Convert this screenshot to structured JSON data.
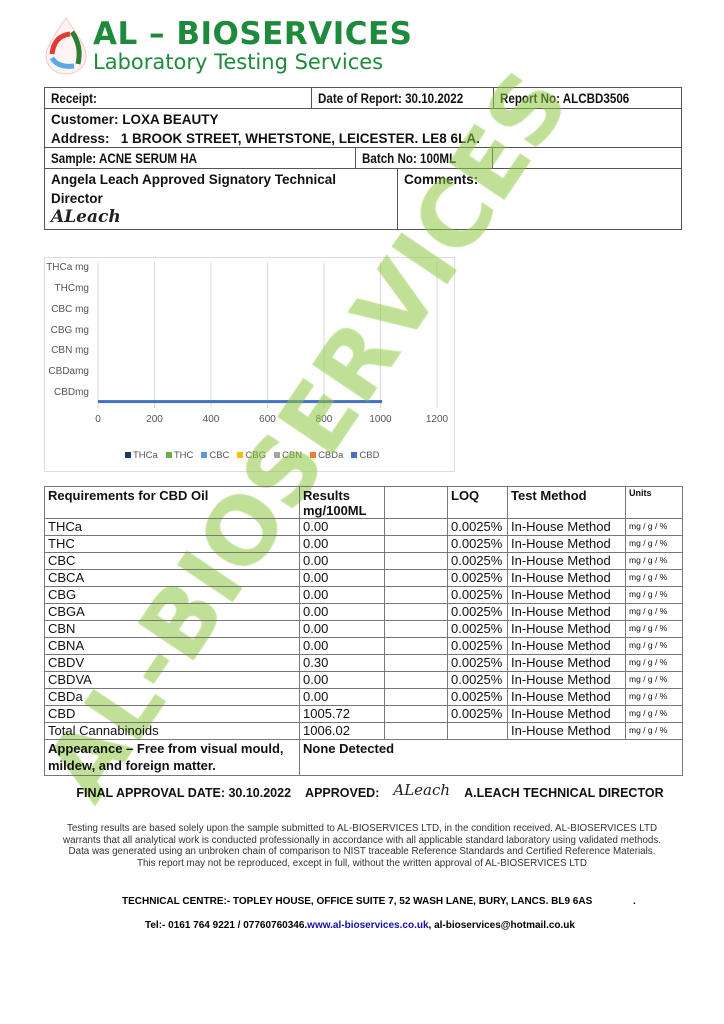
{
  "header": {
    "title": "AL – BIOSERVICES",
    "subtitle": "Laboratory Testing Services"
  },
  "info": {
    "receipt": "Receipt:",
    "date_of_report": "Date of Report: 30.10.2022",
    "report_no": "Report No: ALCBD3506",
    "customer": "Customer: LOXA BEAUTY",
    "address": "Address:   1 BROOK STREET, WHETSTONE, LEICESTER. LE8 6LA.",
    "sample": "Sample:  ACNE SERUM HA",
    "batch": "Batch No: 100ML",
    "signatory": "Angela Leach Approved Signatory Technical Director",
    "comments": "Comments:",
    "signature": "ALeach"
  },
  "chart_data": {
    "type": "bar",
    "orientation": "horizontal",
    "categories": [
      "THCa mg",
      "THCmg",
      "CBC mg",
      "CBG mg",
      "CBN mg",
      "CBDamg",
      "CBDmg"
    ],
    "series": [
      {
        "name": "THCa",
        "color": "#1f3864",
        "values": [
          0,
          0,
          0,
          0,
          0,
          0,
          0
        ]
      },
      {
        "name": "THC",
        "color": "#70ad47",
        "values": [
          0,
          0,
          0,
          0,
          0,
          0,
          0
        ]
      },
      {
        "name": "CBC",
        "color": "#5b9bd5",
        "values": [
          0,
          0,
          0,
          0,
          0,
          0,
          0
        ]
      },
      {
        "name": "CBG",
        "color": "#ffc000",
        "values": [
          0,
          0,
          0,
          0,
          0,
          0,
          0
        ]
      },
      {
        "name": "CBN",
        "color": "#a5a5a5",
        "values": [
          0,
          0,
          0,
          0,
          0,
          0,
          0
        ]
      },
      {
        "name": "CBDa",
        "color": "#ed7d31",
        "values": [
          0,
          0,
          0,
          0,
          0,
          0,
          0
        ]
      },
      {
        "name": "CBD",
        "color": "#4472c4",
        "values": [
          0,
          0,
          0,
          0,
          0,
          0,
          1005.72
        ]
      }
    ],
    "xticks": [
      "0",
      "200",
      "400",
      "600",
      "800",
      "1000",
      "1200"
    ],
    "xlim": [
      0,
      1200
    ],
    "grid": true,
    "legend": "bottom"
  },
  "table": {
    "headers": [
      "Requirements for CBD Oil",
      "Results mg/100ML",
      "",
      "LOQ",
      "Test Method",
      "Units"
    ],
    "rows": [
      [
        "THCa",
        "0.00",
        "0.0025%",
        "In-House Method",
        "mg / g / %"
      ],
      [
        "THC",
        "0.00",
        "0.0025%",
        "In-House Method",
        "mg / g / %"
      ],
      [
        "CBC",
        "0.00",
        "0.0025%",
        "In-House Method",
        "mg / g / %"
      ],
      [
        "CBCA",
        "0.00",
        "0.0025%",
        "In-House Method",
        "mg / g / %"
      ],
      [
        "CBG",
        "0.00",
        "0.0025%",
        "In-House Method",
        "mg / g / %"
      ],
      [
        "CBGA",
        "0.00",
        "0.0025%",
        "In-House Method",
        "mg / g / %"
      ],
      [
        "CBN",
        "0.00",
        "0.0025%",
        "In-House Method",
        "mg / g / %"
      ],
      [
        "CBNA",
        "0.00",
        "0.0025%",
        "In-House Method",
        "mg / g / %"
      ],
      [
        "CBDV",
        "0.30",
        "0.0025%",
        "In-House Method",
        "mg / g / %"
      ],
      [
        "CBDVA",
        "0.00",
        "0.0025%",
        "In-House Method",
        "mg / g / %"
      ],
      [
        "CBDa",
        "0.00",
        "0.0025%",
        "In-House Method",
        "mg / g / %"
      ],
      [
        "CBD",
        "1005.72",
        "0.0025%",
        "In-House Method",
        "mg / g / %"
      ],
      [
        "Total Cannabinoids",
        "1006.02",
        "",
        "In-House Method",
        "mg / g / %"
      ]
    ],
    "appearance_label": "Appearance – Free from visual mould, mildew, and foreign matter.",
    "appearance_value": "None Detected"
  },
  "approval": {
    "date": "FINAL APPROVAL DATE: 30.10.2022",
    "approved": "APPROVED:",
    "signature": "ALeach",
    "signer": "A.LEACH TECHNICAL DIRECTOR"
  },
  "disclaimer": "Testing results are based solely upon the sample submitted to AL-BIOSERVICES LTD, in the condition received. AL-BIOSERVICES LTD warrants that all analytical work is conducted professionally in accordance with all applicable standard laboratory using validated methods. Data was generated using an unbroken chain of comparison to NIST traceable Reference Standards and Certified Reference Materials. This report may not be reproduced, except in full, without the written approval of AL-BIOSERVICES LTD",
  "footer": {
    "address": "TECHNICAL CENTRE:- TOPLEY HOUSE, OFFICE SUITE 7, 52 WASH LANE, BURY, LANCS. BL9 6AS",
    "dot": ".",
    "tel": "Tel:- 0161 764 9221 / 07760760346.",
    "website": "www.al-bioservices.co.uk",
    "email": ",  al-bioservices@hotmail.co.uk"
  },
  "watermark": "AL-BIOSERVICES"
}
